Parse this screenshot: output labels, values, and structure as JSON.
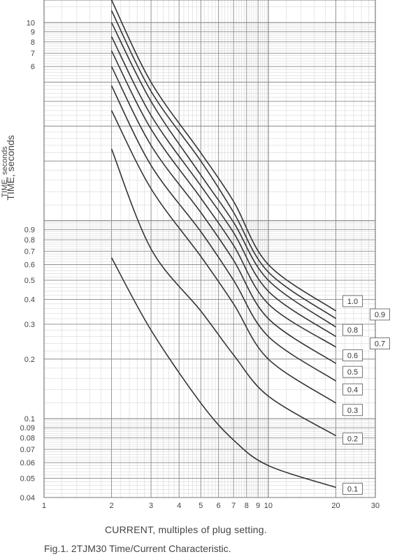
{
  "chart_data": {
    "type": "line",
    "title": "",
    "xlabel": "CURRENT, multiples of plug setting.",
    "ylabel": "TIME, seconds",
    "ylabel_secondary": "TIME, seconds",
    "caption": "Fig.1. 2TJM30 Time/Current Characteristic.",
    "x_scale": "log",
    "y_scale": "log",
    "xlim": [
      1,
      30
    ],
    "ylim": [
      0.04,
      13
    ],
    "grid": true,
    "x_ticks": [
      "1",
      "2",
      "3",
      "4",
      "5",
      "6",
      "7",
      "8",
      "9",
      "10",
      "20",
      "30"
    ],
    "x_tick_values": [
      1,
      2,
      3,
      4,
      5,
      6,
      7,
      8,
      9,
      10,
      20,
      30
    ],
    "y_ticks": [
      "10",
      "9",
      "8",
      "7",
      "6",
      "0.9",
      "0.8",
      "0.7",
      "0.6",
      "0.5",
      "0.4",
      "0.3",
      "0.2",
      "0.1",
      "0.09",
      "0.08",
      "0.07",
      "0.06",
      "0.05",
      "0.04"
    ],
    "y_tick_values": [
      10,
      9,
      8,
      7,
      6,
      0.9,
      0.8,
      0.7,
      0.6,
      0.5,
      0.4,
      0.3,
      0.2,
      0.1,
      0.09,
      0.08,
      0.07,
      0.06,
      0.05,
      0.04
    ],
    "x": [
      2,
      3,
      5,
      7,
      10,
      20
    ],
    "series": [
      {
        "name": "1.0",
        "values": [
          13,
          5.0,
          2.2,
          1.25,
          0.6,
          0.35
        ]
      },
      {
        "name": "0.9",
        "values": [
          11.5,
          4.5,
          2.0,
          1.1,
          0.55,
          0.32
        ]
      },
      {
        "name": "0.8",
        "values": [
          10.0,
          4.0,
          1.7,
          0.98,
          0.5,
          0.29
        ]
      },
      {
        "name": "0.7",
        "values": [
          8.5,
          3.4,
          1.5,
          0.87,
          0.44,
          0.26
        ]
      },
      {
        "name": "0.6",
        "values": [
          7.2,
          2.9,
          1.3,
          0.75,
          0.38,
          0.23
        ]
      },
      {
        "name": "0.5",
        "values": [
          6.0,
          2.4,
          1.1,
          0.63,
          0.32,
          0.19
        ]
      },
      {
        "name": "0.4",
        "values": [
          4.8,
          1.9,
          0.88,
          0.5,
          0.26,
          0.155
        ]
      },
      {
        "name": "0.3",
        "values": [
          3.6,
          1.45,
          0.66,
          0.38,
          0.2,
          0.12
        ]
      },
      {
        "name": "0.2",
        "values": [
          2.3,
          0.72,
          0.35,
          0.21,
          0.13,
          0.082
        ]
      },
      {
        "name": "0.1",
        "values": [
          0.65,
          0.28,
          0.12,
          0.078,
          0.058,
          0.045
        ]
      }
    ],
    "line_color": "#333333",
    "grid_major_color": "#8a8a8a",
    "grid_minor_color": "#cfcfcf"
  }
}
